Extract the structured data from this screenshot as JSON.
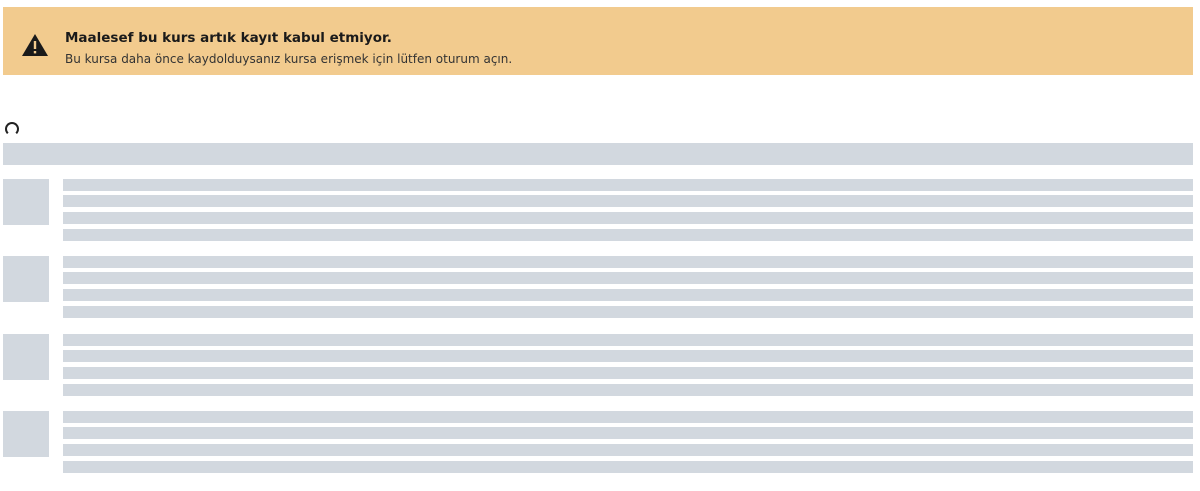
{
  "alert": {
    "icon": "warning-icon",
    "title": "Maalesef bu kurs artık kayıt kabul etmiyor.",
    "message": "Bu kursa daha önce kaydolduysanız kursa erişmek için lütfen oturum açın.",
    "background": "#f2cb8e"
  },
  "loading": {
    "icon": "spinner-icon"
  },
  "skeleton": {
    "color": "#d2d8df",
    "row_count": 4,
    "lines_per_row": 4
  }
}
